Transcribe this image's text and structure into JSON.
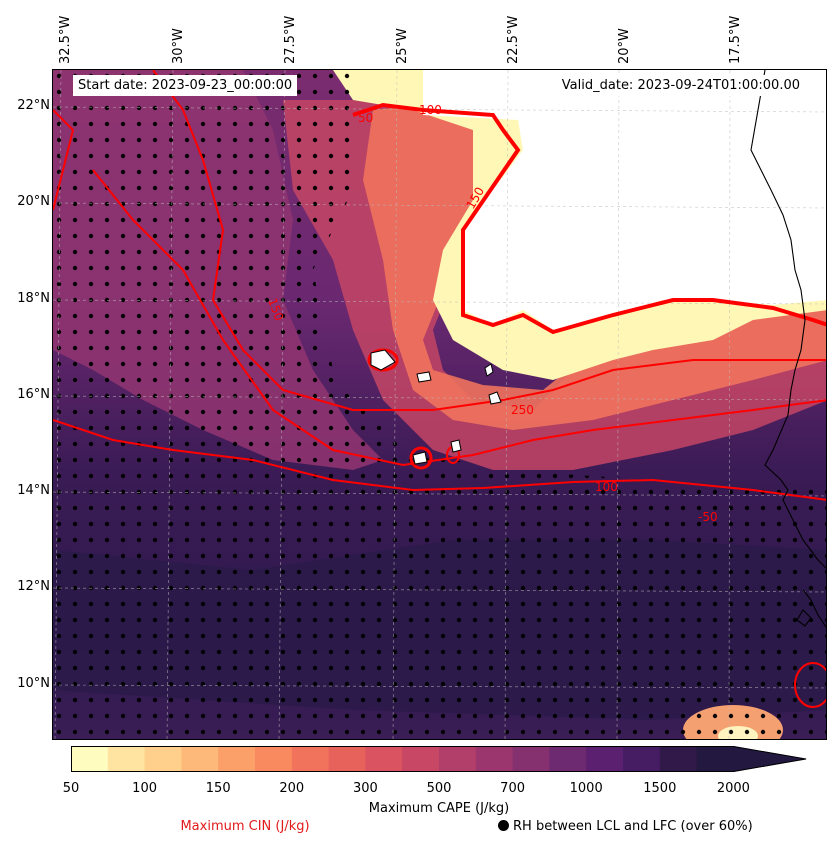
{
  "header": {
    "start_date": "Start date: 2023-09-23_00:00:00",
    "valid_date": "Valid_date: 2023-09-24T01:00:00.00"
  },
  "axes": {
    "longitude_labels": [
      "32.5°W",
      "30°W",
      "27.5°W",
      "25°W",
      "22.5°W",
      "20°W",
      "17.5°W"
    ],
    "latitude_labels": [
      "22°N",
      "20°N",
      "18°N",
      "16°N",
      "14°N",
      "12°N",
      "10°N"
    ]
  },
  "map": {
    "contour_labels": [
      "50",
      "100",
      "150",
      "150",
      "250",
      "100",
      "-50"
    ],
    "colors": {
      "cin_contour": "#ff0000",
      "coastline": "#000000",
      "gridline": "#bbbbbb",
      "rh_dots": "#000000"
    }
  },
  "colorbar": {
    "ticks": [
      "50",
      "100",
      "150",
      "200",
      "300",
      "500",
      "700",
      "1000",
      "1500",
      "2000"
    ],
    "label": "Maximum CAPE (J/kg)",
    "colors": [
      "#fffcc0",
      "#ffe3a0",
      "#fed08b",
      "#fdb97a",
      "#fca06a",
      "#f98a60",
      "#f2735c",
      "#e8625c",
      "#d95360",
      "#c84765",
      "#b23e6a",
      "#9c366e",
      "#85306f",
      "#6e2a70",
      "#5b2170",
      "#461c62",
      "#311a4a",
      "#221840"
    ]
  },
  "legend": {
    "cin_label": "Maximum CIN (J/kg)",
    "rh_label": "RH between LCL and LFC (over 60%)"
  }
}
